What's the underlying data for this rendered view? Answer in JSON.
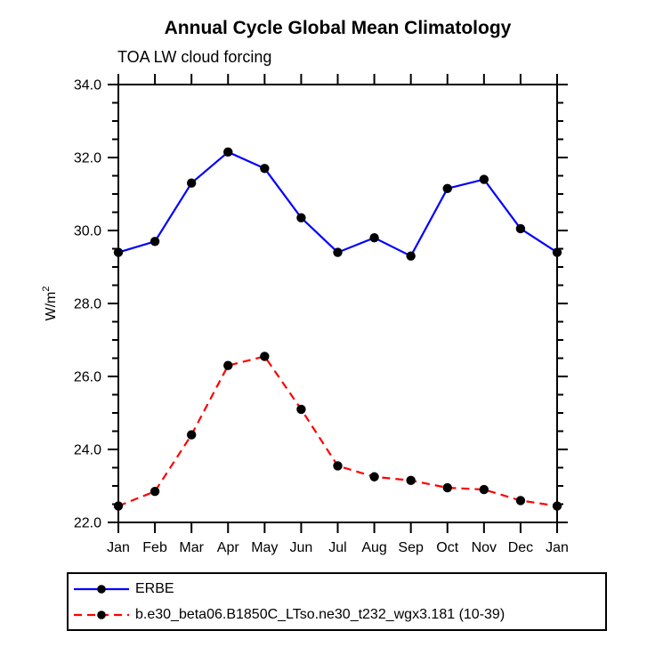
{
  "chart_data": {
    "type": "line",
    "title": "Annual Cycle Global Mean Climatology",
    "subtitle": "TOA LW cloud forcing",
    "xlabel": "",
    "ylabel": "W/m²",
    "ylim": [
      22.0,
      34.0
    ],
    "ytick_major": 2.0,
    "ytick_minor": 0.5,
    "ytick_labels": [
      "22.0",
      "24.0",
      "26.0",
      "28.0",
      "30.0",
      "32.0",
      "34.0"
    ],
    "grid": false,
    "legend_position": "bottom",
    "categories": [
      "Jan",
      "Feb",
      "Mar",
      "Apr",
      "May",
      "Jun",
      "Jul",
      "Aug",
      "Sep",
      "Oct",
      "Nov",
      "Dec",
      "Jan"
    ],
    "marker_color": "#000000",
    "axis_color": "#000000",
    "series": [
      {
        "name": "ERBE",
        "color": "#0000ff",
        "line_style": "solid",
        "marker": "filled-circle",
        "values": [
          29.4,
          29.7,
          31.3,
          32.15,
          31.7,
          30.35,
          29.4,
          29.8,
          29.3,
          31.15,
          31.4,
          30.05,
          29.4
        ]
      },
      {
        "name": "b.e30_beta06.B1850C_LTso.ne30_t232_wgx3.181 (10-39)",
        "color": "#ff0000",
        "line_style": "dashed",
        "marker": "filled-circle",
        "values": [
          22.45,
          22.85,
          24.4,
          26.3,
          26.55,
          25.1,
          23.55,
          23.25,
          23.15,
          22.95,
          22.9,
          22.6,
          22.45
        ]
      }
    ]
  }
}
